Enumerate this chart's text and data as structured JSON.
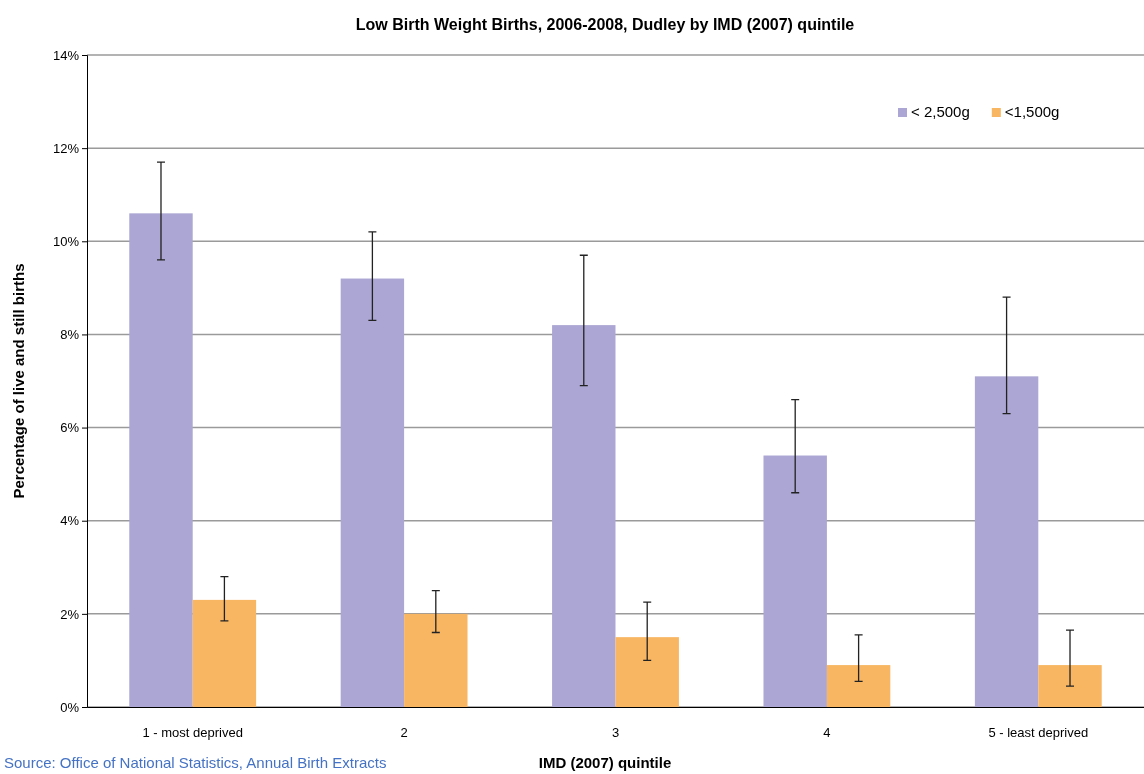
{
  "chart_data": {
    "type": "bar",
    "title": "Low Birth Weight Births, 2006-2008, Dudley by IMD (2007) quintile",
    "xlabel": "IMD (2007) quintile",
    "ylabel": "Percentage of live and still births",
    "categories": [
      "1 - most deprived",
      "2",
      "3",
      "4",
      "5 - least deprived"
    ],
    "series": [
      {
        "name": "< 2,500g",
        "color": "#aba6d3",
        "values": [
          10.6,
          9.2,
          8.2,
          5.4,
          7.1
        ],
        "errors": [
          [
            9.6,
            11.7
          ],
          [
            8.3,
            10.2
          ],
          [
            6.9,
            9.7
          ],
          [
            4.6,
            6.6
          ],
          [
            6.3,
            8.8
          ]
        ]
      },
      {
        "name": "<1,500g",
        "color": "#f8b663",
        "values": [
          2.3,
          2.0,
          1.5,
          0.9,
          0.9
        ],
        "errors": [
          [
            1.85,
            2.8
          ],
          [
            1.6,
            2.5
          ],
          [
            1.0,
            2.25
          ],
          [
            0.55,
            1.55
          ],
          [
            0.45,
            1.65
          ]
        ]
      }
    ],
    "ylim": [
      0,
      14
    ],
    "yticks": [
      {
        "value": 0,
        "label": "0%"
      },
      {
        "value": 2,
        "label": "2%"
      },
      {
        "value": 4,
        "label": "4%"
      },
      {
        "value": 6,
        "label": "6%"
      },
      {
        "value": 8,
        "label": "8%"
      },
      {
        "value": 10,
        "label": "10%"
      },
      {
        "value": 12,
        "label": "12%"
      },
      {
        "value": 14,
        "label": "14%"
      }
    ],
    "grid": "y",
    "legend": "top right",
    "annotations": [
      "Source: Office of National Statistics, Annual Birth Extracts"
    ]
  }
}
